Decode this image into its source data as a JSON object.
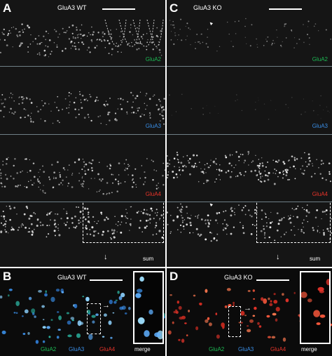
{
  "panels": {
    "A": {
      "letter": "A",
      "title": "GluA3 WT"
    },
    "C": {
      "letter": "C",
      "title": "GluA3 KO"
    },
    "B": {
      "letter": "B",
      "title": "GluA3 WT"
    },
    "D": {
      "letter": "D",
      "title": "GluA3 KO"
    }
  },
  "channels": [
    "GluA2",
    "GluA3",
    "GluA4",
    "sum"
  ],
  "legend": [
    "GluA2",
    "GluA3",
    "GluA4"
  ],
  "merge_label": "merge",
  "arrow_down": "↓",
  "arrow_right": "→",
  "arrowhead": "▲",
  "colors": {
    "glua2": "#1db954",
    "glua3": "#3a8ee6",
    "glua4": "#e8342a",
    "separator": "#6f7f86"
  }
}
